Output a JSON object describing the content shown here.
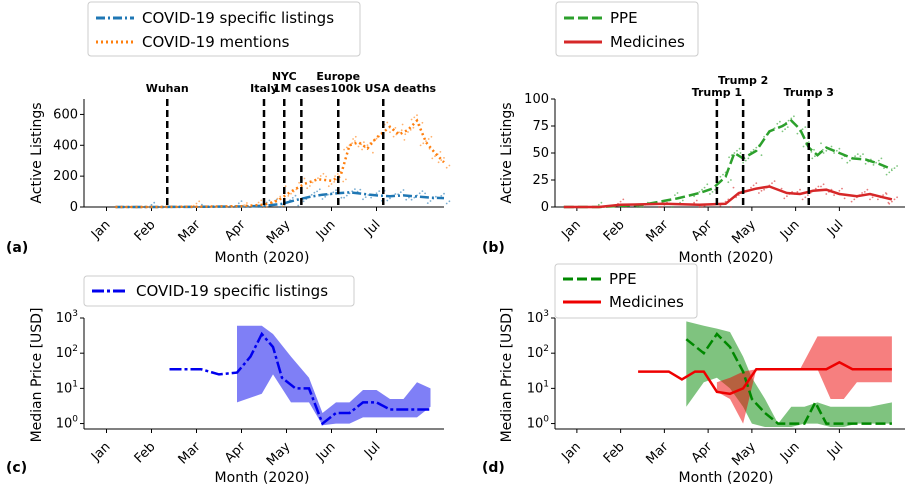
{
  "months": [
    "Jan",
    "Feb",
    "Mar",
    "Apr",
    "May",
    "Jun",
    "Jul"
  ],
  "chart_data": [
    {
      "panel": "(a)",
      "type": "line",
      "xlabel": "Month (2020)",
      "ylabel": "Active Listings",
      "ylim": [
        0,
        700
      ],
      "yticks": [
        0,
        200,
        400,
        600
      ],
      "legend": [
        "COVID-19 specific listings",
        "COVID-19 mentions"
      ],
      "events": [
        {
          "label": "Wuhan",
          "x": 1.85
        },
        {
          "label": "Italy",
          "x": 4.0
        },
        {
          "label": "NYC",
          "x": 4.45
        },
        {
          "label": "1M cases",
          "x": 4.83
        },
        {
          "label": "Europe",
          "x": 5.65
        },
        {
          "label": "100k USA deaths",
          "x": 6.65
        }
      ],
      "series": [
        {
          "name": "COVID-19 specific listings",
          "color": "#1f77b4",
          "dash": "9,3,2,3",
          "x": [
            0.7,
            1.5,
            2.5,
            3.5,
            4.0,
            4.4,
            4.7,
            5.0,
            5.3,
            5.6,
            5.9,
            6.2,
            6.5,
            6.8,
            7.1,
            7.4,
            7.7,
            8.0
          ],
          "y": [
            0,
            0,
            1,
            3,
            8,
            20,
            45,
            65,
            80,
            88,
            95,
            85,
            75,
            70,
            75,
            68,
            60,
            58
          ]
        },
        {
          "name": "COVID-19 mentions",
          "color": "#ff7f0e",
          "dash": "2,3",
          "x": [
            0.7,
            1.5,
            2.5,
            3.5,
            4.0,
            4.3,
            4.6,
            4.9,
            5.2,
            5.5,
            5.7,
            5.9,
            6.1,
            6.3,
            6.5,
            6.8,
            7.0,
            7.2,
            7.4,
            7.6,
            7.8,
            8.0
          ],
          "y": [
            0,
            0,
            2,
            5,
            15,
            40,
            100,
            150,
            180,
            170,
            200,
            400,
            420,
            380,
            450,
            520,
            470,
            500,
            560,
            420,
            350,
            290
          ]
        }
      ]
    },
    {
      "panel": "(b)",
      "type": "line",
      "xlabel": "Month (2020)",
      "ylabel": "Active Listings",
      "ylim": [
        0,
        100
      ],
      "yticks": [
        0,
        25,
        50,
        75,
        100
      ],
      "legend": [
        "PPE",
        "Medicines"
      ],
      "events": [
        {
          "label": "Trump 1",
          "x": 3.7
        },
        {
          "label": "Trump 2",
          "x": 4.3
        },
        {
          "label": "Trump 3",
          "x": 5.8
        }
      ],
      "series": [
        {
          "name": "PPE",
          "color": "#2ca02c",
          "dash": "10,4",
          "x": [
            0.2,
            1,
            2,
            2.8,
            3.3,
            3.6,
            3.9,
            4.1,
            4.3,
            4.6,
            4.9,
            5.2,
            5.4,
            5.6,
            5.8,
            6.0,
            6.2,
            6.5,
            6.8,
            7.1,
            7.4,
            7.7
          ],
          "y": [
            0,
            0,
            2,
            8,
            13,
            17,
            28,
            50,
            45,
            52,
            70,
            75,
            80,
            72,
            55,
            48,
            55,
            50,
            45,
            44,
            40,
            35
          ]
        },
        {
          "name": "Medicines",
          "color": "#d62728",
          "dash": "",
          "x": [
            0.2,
            1,
            1.5,
            2.5,
            3.3,
            3.9,
            4.2,
            4.6,
            4.9,
            5.3,
            5.6,
            5.9,
            6.2,
            6.5,
            6.9,
            7.2,
            7.5,
            7.7
          ],
          "y": [
            0,
            0,
            2,
            3,
            2,
            3,
            13,
            17,
            19,
            13,
            12,
            15,
            16,
            12,
            10,
            12,
            9,
            7
          ]
        }
      ]
    },
    {
      "panel": "(c)",
      "type": "line",
      "xlabel": "Month (2020)",
      "ylabel": "Median Price [USD]",
      "yscale": "log",
      "ylim": [
        0.7,
        1000
      ],
      "yticks": [
        1,
        10,
        100,
        1000
      ],
      "legend": [
        "COVID-19 specific listings"
      ],
      "series": [
        {
          "name": "COVID-19 specific listings",
          "color": "#0000ee",
          "dash": "12,3,3,3",
          "x": [
            1.9,
            2.3,
            2.6,
            3.0,
            3.4,
            3.7,
            3.95,
            4.2,
            4.4,
            4.7,
            5.0,
            5.3,
            5.6,
            5.9,
            6.2,
            6.5,
            6.8,
            7.1,
            7.4,
            7.7
          ],
          "y": [
            35,
            35,
            35,
            25,
            28,
            80,
            350,
            150,
            20,
            10,
            10,
            1,
            2,
            2,
            4,
            4,
            2.5,
            2.5,
            2.5,
            2.5
          ],
          "band_x": [
            3.4,
            3.95,
            4.2,
            4.6,
            5.0,
            5.3,
            5.6,
            5.9,
            6.2,
            6.5,
            6.8,
            7.1,
            7.4,
            7.7
          ],
          "band_low": [
            4,
            7,
            25,
            4,
            4,
            0.9,
            1,
            1,
            1.5,
            1.5,
            1.5,
            1.5,
            1.5,
            3
          ],
          "band_high": [
            600,
            600,
            350,
            80,
            20,
            2,
            4,
            4,
            9,
            9,
            5,
            5,
            15,
            10
          ]
        }
      ]
    },
    {
      "panel": "(d)",
      "type": "line",
      "xlabel": "Month (2020)",
      "ylabel": "Median Price [USD]",
      "yscale": "log",
      "ylim": [
        0.7,
        1000
      ],
      "yticks": [
        1,
        10,
        100,
        1000
      ],
      "legend": [
        "PPE",
        "Medicines"
      ],
      "series": [
        {
          "name": "PPE",
          "color": "#008800",
          "dash": "10,4",
          "x": [
            3.0,
            3.4,
            3.7,
            4.0,
            4.3,
            4.5,
            4.8,
            5.1,
            5.4,
            5.7,
            5.95,
            6.2,
            6.5,
            6.8,
            7.1,
            7.4,
            7.7
          ],
          "y": [
            250,
            100,
            350,
            150,
            30,
            5,
            2,
            1,
            1,
            1,
            4,
            1,
            1,
            1,
            1,
            1,
            1
          ],
          "band_x": [
            3.0,
            3.4,
            3.7,
            4.0,
            4.3,
            4.5,
            4.8,
            5.1,
            5.4,
            5.7,
            6.0,
            6.3,
            6.6,
            6.9,
            7.2,
            7.7
          ],
          "band_low": [
            3,
            15,
            20,
            10,
            3,
            1,
            0.8,
            0.8,
            0.8,
            1,
            1,
            0.8,
            0.8,
            1,
            1,
            1
          ],
          "band_high": [
            800,
            600,
            500,
            400,
            80,
            20,
            5,
            1,
            3,
            3,
            4,
            3,
            3,
            3,
            3,
            4
          ]
        },
        {
          "name": "Medicines",
          "color": "#ee0000",
          "dash": "",
          "x": [
            1.9,
            2.3,
            2.6,
            2.9,
            3.2,
            3.4,
            3.7,
            4.0,
            4.3,
            4.6,
            4.9,
            5.2,
            5.6,
            5.9,
            6.2,
            6.5,
            6.8,
            7.1,
            7.4,
            7.7
          ],
          "y": [
            30,
            30,
            30,
            18,
            30,
            30,
            8,
            7,
            10,
            35,
            35,
            35,
            35,
            35,
            35,
            55,
            35,
            35,
            35,
            35
          ],
          "band_x": [
            3.7,
            4.0,
            4.3,
            4.6,
            5.0,
            5.6,
            6.0,
            6.3,
            6.6,
            6.9,
            7.2,
            7.7
          ],
          "band_low": [
            8,
            5,
            1,
            35,
            35,
            35,
            35,
            5,
            5,
            15,
            15,
            15
          ],
          "band_high": [
            15,
            20,
            30,
            35,
            35,
            35,
            300,
            300,
            300,
            300,
            300,
            300
          ]
        }
      ]
    }
  ]
}
